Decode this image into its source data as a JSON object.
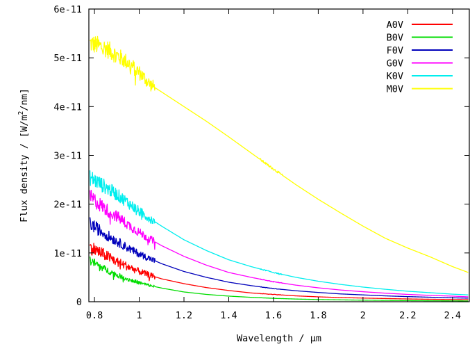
{
  "chart_data": {
    "type": "line",
    "xlabel": "Wavelength / μm",
    "ylabel": "Flux density / [W/m",
    "ylabel_sup": "2",
    "ylabel_tail": "/nm]",
    "xlim": [
      0.775,
      2.475
    ],
    "ylim": [
      0,
      6e-11
    ],
    "grid": false,
    "legend_position": "top-right",
    "x_ticks": [
      0.8,
      1.0,
      1.2,
      1.4,
      1.6,
      1.8,
      2.0,
      2.2,
      2.4
    ],
    "x_tick_labels": [
      "0.8",
      "1",
      "1.2",
      "1.4",
      "1.6",
      "1.8",
      "2",
      "2.2",
      "2.4"
    ],
    "y_ticks": [
      0,
      1e-11,
      2e-11,
      3e-11,
      4e-11,
      5e-11,
      6e-11
    ],
    "y_tick_labels": [
      "0",
      "1e-11",
      "2e-11",
      "3e-11",
      "4e-11",
      "5e-11",
      "6e-11"
    ],
    "series": [
      {
        "name": "A0V",
        "color": "#ff0000",
        "noise": 0.12,
        "x": [
          0.78,
          0.85,
          0.9,
          0.95,
          1.0,
          1.05,
          1.1,
          1.2,
          1.3,
          1.4,
          1.5,
          1.6,
          1.7,
          1.8,
          1.9,
          2.0,
          2.1,
          2.2,
          2.3,
          2.4,
          2.47
        ],
        "y": [
          1.12e-11,
          9.5e-12,
          8.2e-12,
          7.2e-12,
          6.2e-12,
          5.4e-12,
          4.7e-12,
          3.7e-12,
          2.9e-12,
          2.3e-12,
          1.8e-12,
          1.5e-12,
          1.2e-12,
          1e-12,
          8.5e-13,
          7.5e-13,
          6.5e-13,
          5.7e-13,
          5e-13,
          4.5e-13,
          4.2e-13
        ]
      },
      {
        "name": "B0V",
        "color": "#00dd00",
        "noise": 0.1,
        "x": [
          0.78,
          0.85,
          0.9,
          0.95,
          1.0,
          1.05,
          1.1,
          1.2,
          1.3,
          1.4,
          1.5,
          1.6,
          1.7,
          1.8,
          1.9,
          2.0,
          2.1,
          2.2,
          2.3,
          2.4,
          2.47
        ],
        "y": [
          8.5e-12,
          6.6e-12,
          5.5e-12,
          4.6e-12,
          3.9e-12,
          3.3e-12,
          2.8e-12,
          2e-12,
          1.5e-12,
          1.15e-12,
          9e-13,
          7e-13,
          5.5e-13,
          4.5e-13,
          3.8e-13,
          3.2e-13,
          2.7e-13,
          2.3e-13,
          2e-13,
          1.8e-13,
          1.6e-13
        ]
      },
      {
        "name": "F0V",
        "color": "#0000bb",
        "noise": 0.08,
        "x": [
          0.78,
          0.85,
          0.9,
          0.95,
          1.0,
          1.05,
          1.1,
          1.2,
          1.3,
          1.4,
          1.5,
          1.6,
          1.7,
          1.8,
          1.9,
          2.0,
          2.1,
          2.2,
          2.3,
          2.4,
          2.47
        ],
        "y": [
          1.6e-11,
          1.38e-11,
          1.24e-11,
          1.1e-11,
          9.8e-12,
          8.8e-12,
          7.8e-12,
          6.2e-12,
          5e-12,
          4e-12,
          3.3e-12,
          2.7e-12,
          2.25e-12,
          1.9e-12,
          1.6e-12,
          1.4e-12,
          1.2e-12,
          1.05e-12,
          9.2e-13,
          8e-13,
          7.3e-13
        ]
      },
      {
        "name": "G0V",
        "color": "#ff00ff",
        "noise": 0.07,
        "x": [
          0.78,
          0.85,
          0.9,
          0.95,
          1.0,
          1.05,
          1.1,
          1.2,
          1.3,
          1.4,
          1.5,
          1.6,
          1.7,
          1.8,
          1.9,
          2.0,
          2.1,
          2.2,
          2.3,
          2.4,
          2.47
        ],
        "y": [
          2.15e-11,
          1.9e-11,
          1.75e-11,
          1.58e-11,
          1.42e-11,
          1.28e-11,
          1.15e-11,
          9.3e-12,
          7.5e-12,
          6e-12,
          5e-12,
          4.1e-12,
          3.4e-12,
          2.85e-12,
          2.4e-12,
          2.05e-12,
          1.75e-12,
          1.5e-12,
          1.3e-12,
          1.15e-12,
          1e-12
        ]
      },
      {
        "name": "K0V",
        "color": "#00eeee",
        "noise": 0.06,
        "x": [
          0.78,
          0.85,
          0.9,
          0.95,
          1.0,
          1.05,
          1.1,
          1.2,
          1.3,
          1.4,
          1.5,
          1.6,
          1.7,
          1.8,
          1.9,
          2.0,
          2.1,
          2.2,
          2.3,
          2.4,
          2.47
        ],
        "y": [
          2.55e-11,
          2.35e-11,
          2.2e-11,
          2.03e-11,
          1.85e-11,
          1.7e-11,
          1.55e-11,
          1.27e-11,
          1.05e-11,
          8.6e-12,
          7.2e-12,
          6e-12,
          5e-12,
          4.2e-12,
          3.55e-12,
          3e-12,
          2.55e-12,
          2.15e-12,
          1.85e-12,
          1.55e-12,
          1.4e-12
        ]
      },
      {
        "name": "M0V",
        "color": "#ffff00",
        "noise": 0.035,
        "x": [
          0.78,
          0.85,
          0.9,
          0.95,
          1.0,
          1.05,
          1.1,
          1.2,
          1.3,
          1.4,
          1.5,
          1.6,
          1.7,
          1.8,
          1.9,
          2.0,
          2.1,
          2.2,
          2.3,
          2.4,
          2.47
        ],
        "y": [
          5.3e-11,
          5.2e-11,
          5.05e-11,
          4.9e-11,
          4.7e-11,
          4.45e-11,
          4.3e-11,
          4e-11,
          3.7e-11,
          3.38e-11,
          3.05e-11,
          2.72e-11,
          2.4e-11,
          2.1e-11,
          1.82e-11,
          1.55e-11,
          1.3e-11,
          1.1e-11,
          9.2e-12,
          7.2e-12,
          6e-12
        ]
      }
    ]
  }
}
